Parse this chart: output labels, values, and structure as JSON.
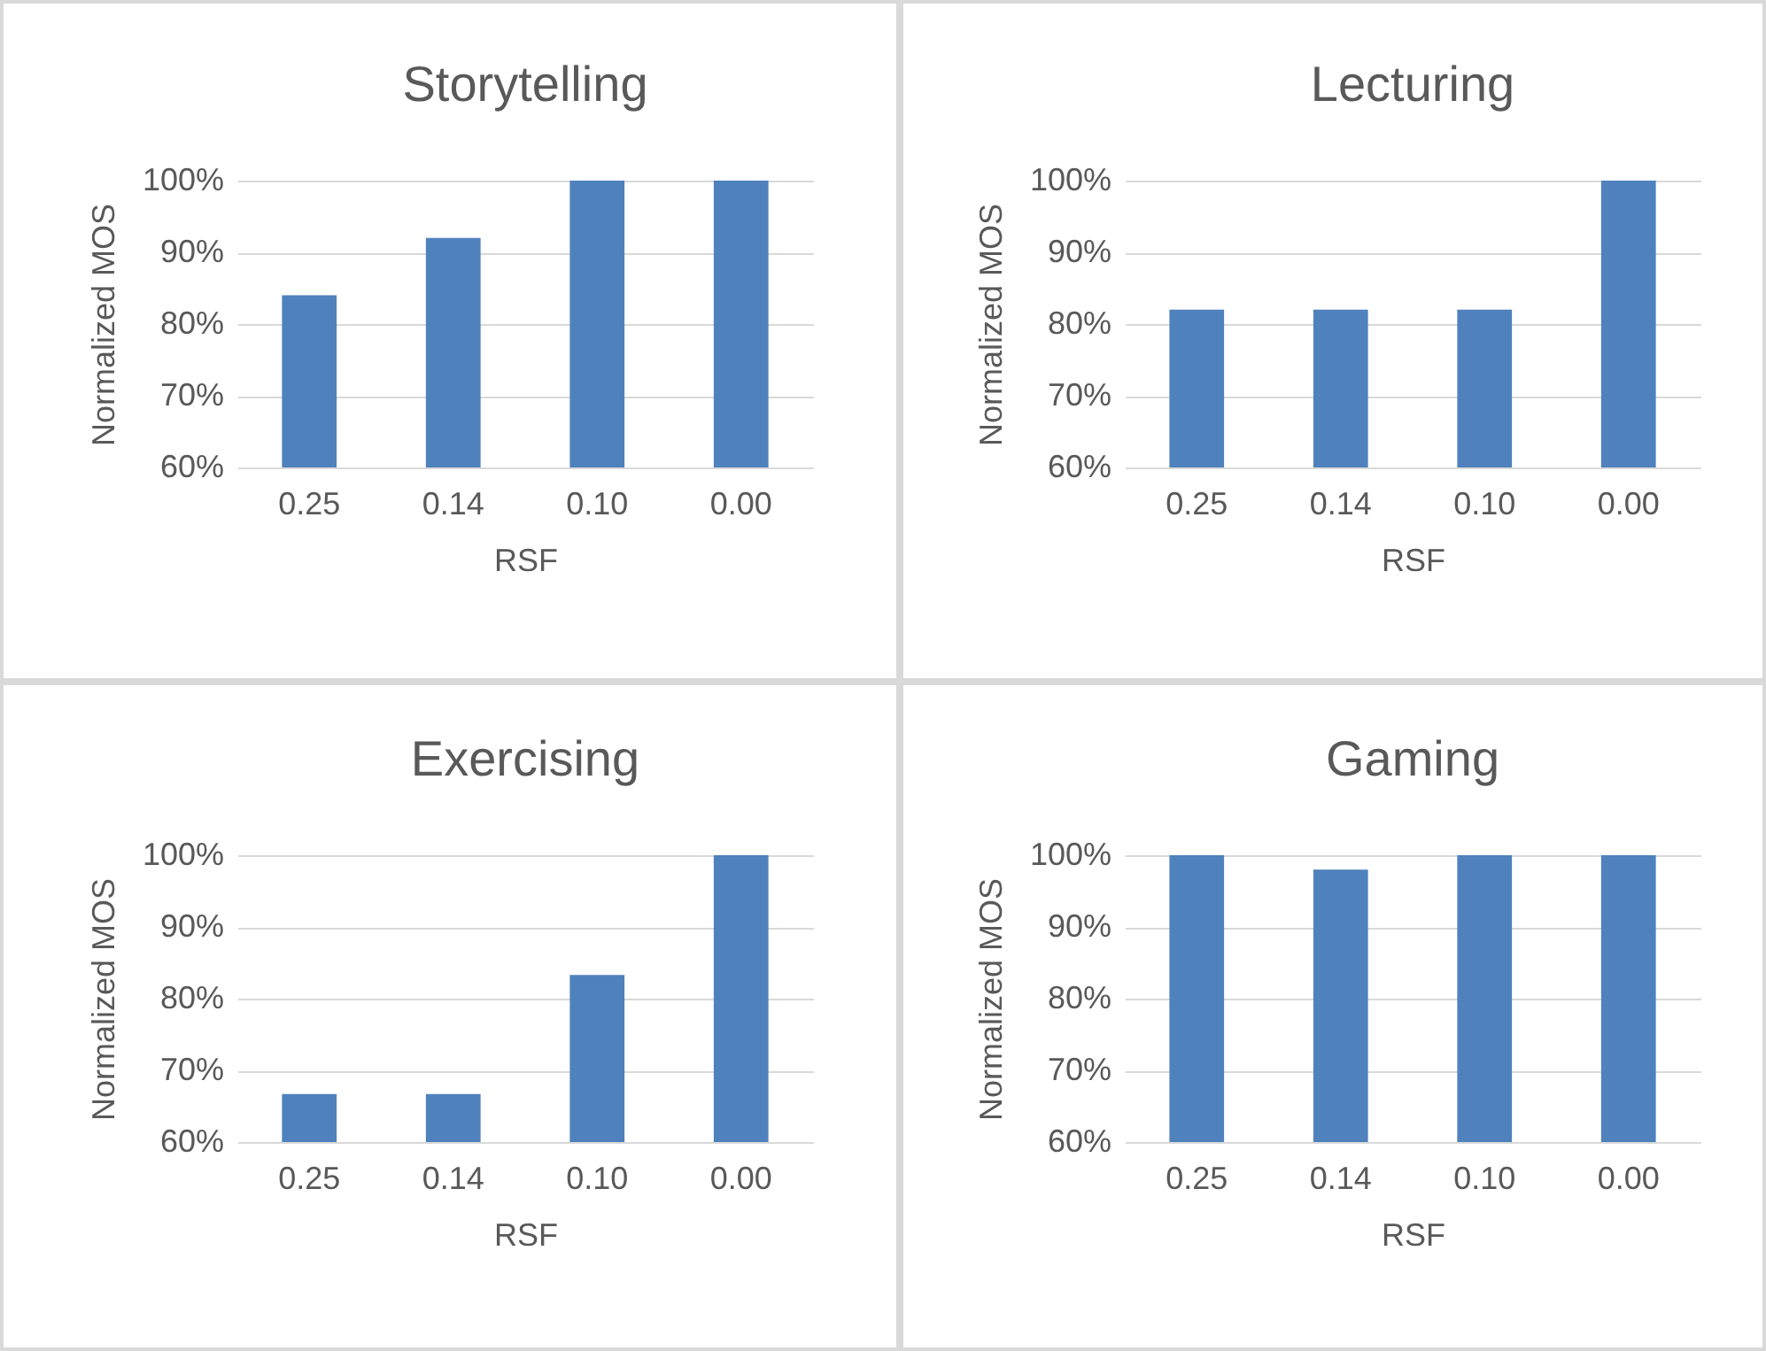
{
  "chart_data": [
    {
      "type": "bar",
      "title": "Storytelling",
      "xlabel": "RSF",
      "ylabel": "Normalized MOS",
      "categories": [
        "0.25",
        "0.14",
        "0.10",
        "0.00"
      ],
      "values": [
        84,
        92,
        100,
        100
      ],
      "color": "#4f81bd",
      "ylim": [
        60,
        100
      ],
      "yticks": [
        {
          "value": 60,
          "label": "60%"
        },
        {
          "value": 70,
          "label": "70%"
        },
        {
          "value": 80,
          "label": "80%"
        },
        {
          "value": 90,
          "label": "90%"
        },
        {
          "value": 100,
          "label": "100%"
        }
      ],
      "grid": "y"
    },
    {
      "type": "bar",
      "title": "Lecturing",
      "xlabel": "RSF",
      "ylabel": "Normalized MOS",
      "categories": [
        "0.25",
        "0.14",
        "0.10",
        "0.00"
      ],
      "values": [
        82,
        82,
        82,
        100
      ],
      "color": "#4f81bd",
      "ylim": [
        60,
        100
      ],
      "yticks": [
        {
          "value": 60,
          "label": "60%"
        },
        {
          "value": 70,
          "label": "70%"
        },
        {
          "value": 80,
          "label": "80%"
        },
        {
          "value": 90,
          "label": "90%"
        },
        {
          "value": 100,
          "label": "100%"
        }
      ],
      "grid": "y"
    },
    {
      "type": "bar",
      "title": "Exercising",
      "xlabel": "RSF",
      "ylabel": "Normalized MOS",
      "categories": [
        "0.25",
        "0.14",
        "0.10",
        "0.00"
      ],
      "values": [
        66.7,
        66.7,
        83.3,
        100
      ],
      "color": "#4f81bd",
      "ylim": [
        60,
        100
      ],
      "yticks": [
        {
          "value": 60,
          "label": "60%"
        },
        {
          "value": 70,
          "label": "70%"
        },
        {
          "value": 80,
          "label": "80%"
        },
        {
          "value": 90,
          "label": "90%"
        },
        {
          "value": 100,
          "label": "100%"
        }
      ],
      "grid": "y"
    },
    {
      "type": "bar",
      "title": "Gaming",
      "xlabel": "RSF",
      "ylabel": "Normalized MOS",
      "categories": [
        "0.25",
        "0.14",
        "0.10",
        "0.00"
      ],
      "values": [
        100,
        98,
        100,
        100
      ],
      "color": "#4f81bd",
      "ylim": [
        60,
        100
      ],
      "yticks": [
        {
          "value": 60,
          "label": "60%"
        },
        {
          "value": 70,
          "label": "70%"
        },
        {
          "value": 80,
          "label": "80%"
        },
        {
          "value": 90,
          "label": "90%"
        },
        {
          "value": 100,
          "label": "100%"
        }
      ],
      "grid": "y"
    }
  ]
}
